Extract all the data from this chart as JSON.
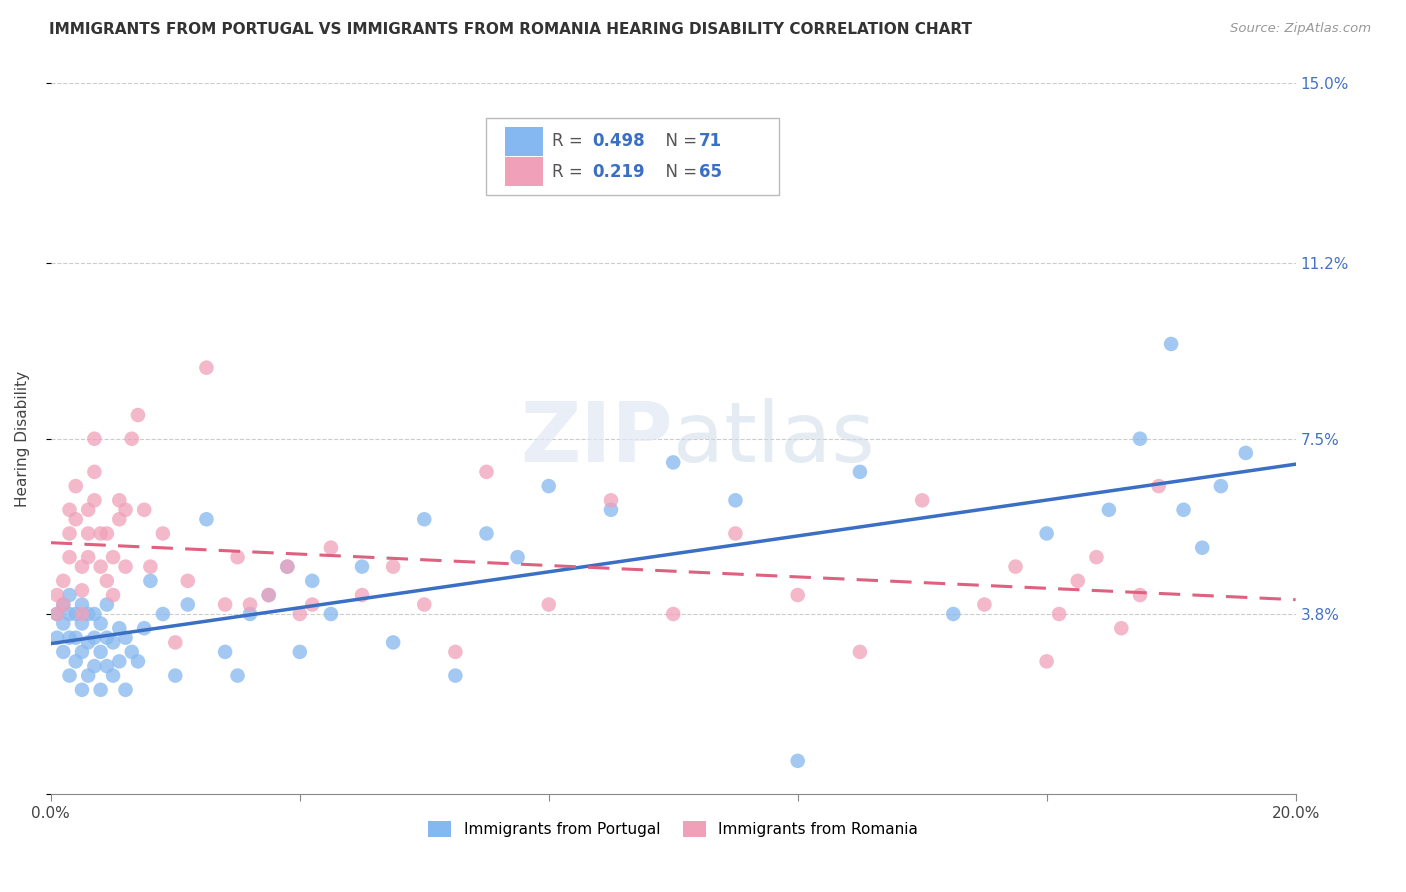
{
  "title": "IMMIGRANTS FROM PORTUGAL VS IMMIGRANTS FROM ROMANIA HEARING DISABILITY CORRELATION CHART",
  "source_text": "Source: ZipAtlas.com",
  "ylabel": "Hearing Disability",
  "xlim": [
    0.0,
    0.2
  ],
  "ylim": [
    0.0,
    0.15
  ],
  "R_portugal": 0.498,
  "N_portugal": 71,
  "R_romania": 0.219,
  "N_romania": 65,
  "color_portugal": "#85b8f0",
  "color_romania": "#f0a0b8",
  "line_color_portugal": "#3a6fc4",
  "line_color_romania": "#e06080",
  "portugal_x": [
    0.001,
    0.001,
    0.002,
    0.002,
    0.002,
    0.003,
    0.003,
    0.003,
    0.003,
    0.004,
    0.004,
    0.004,
    0.005,
    0.005,
    0.005,
    0.005,
    0.006,
    0.006,
    0.006,
    0.007,
    0.007,
    0.007,
    0.008,
    0.008,
    0.008,
    0.009,
    0.009,
    0.009,
    0.01,
    0.01,
    0.011,
    0.011,
    0.012,
    0.012,
    0.013,
    0.014,
    0.015,
    0.016,
    0.018,
    0.02,
    0.022,
    0.025,
    0.028,
    0.03,
    0.032,
    0.035,
    0.038,
    0.04,
    0.042,
    0.045,
    0.05,
    0.055,
    0.06,
    0.065,
    0.07,
    0.075,
    0.08,
    0.09,
    0.1,
    0.11,
    0.12,
    0.13,
    0.145,
    0.16,
    0.17,
    0.175,
    0.18,
    0.182,
    0.185,
    0.188,
    0.192
  ],
  "portugal_y": [
    0.033,
    0.038,
    0.03,
    0.036,
    0.04,
    0.025,
    0.033,
    0.038,
    0.042,
    0.028,
    0.033,
    0.038,
    0.022,
    0.03,
    0.036,
    0.04,
    0.025,
    0.032,
    0.038,
    0.027,
    0.033,
    0.038,
    0.022,
    0.03,
    0.036,
    0.027,
    0.033,
    0.04,
    0.025,
    0.032,
    0.028,
    0.035,
    0.022,
    0.033,
    0.03,
    0.028,
    0.035,
    0.045,
    0.038,
    0.025,
    0.04,
    0.058,
    0.03,
    0.025,
    0.038,
    0.042,
    0.048,
    0.03,
    0.045,
    0.038,
    0.048,
    0.032,
    0.058,
    0.025,
    0.055,
    0.05,
    0.065,
    0.06,
    0.07,
    0.062,
    0.007,
    0.068,
    0.038,
    0.055,
    0.06,
    0.075,
    0.095,
    0.06,
    0.052,
    0.065,
    0.072
  ],
  "romania_x": [
    0.001,
    0.001,
    0.002,
    0.002,
    0.003,
    0.003,
    0.003,
    0.004,
    0.004,
    0.005,
    0.005,
    0.005,
    0.006,
    0.006,
    0.006,
    0.007,
    0.007,
    0.007,
    0.008,
    0.008,
    0.009,
    0.009,
    0.01,
    0.01,
    0.011,
    0.011,
    0.012,
    0.012,
    0.013,
    0.014,
    0.015,
    0.016,
    0.018,
    0.02,
    0.022,
    0.025,
    0.028,
    0.03,
    0.032,
    0.035,
    0.038,
    0.04,
    0.042,
    0.045,
    0.05,
    0.055,
    0.06,
    0.065,
    0.07,
    0.08,
    0.09,
    0.1,
    0.11,
    0.12,
    0.13,
    0.14,
    0.15,
    0.155,
    0.16,
    0.162,
    0.165,
    0.168,
    0.172,
    0.175,
    0.178
  ],
  "romania_y": [
    0.038,
    0.042,
    0.04,
    0.045,
    0.06,
    0.05,
    0.055,
    0.058,
    0.065,
    0.038,
    0.043,
    0.048,
    0.05,
    0.055,
    0.06,
    0.062,
    0.068,
    0.075,
    0.048,
    0.055,
    0.045,
    0.055,
    0.042,
    0.05,
    0.058,
    0.062,
    0.048,
    0.06,
    0.075,
    0.08,
    0.06,
    0.048,
    0.055,
    0.032,
    0.045,
    0.09,
    0.04,
    0.05,
    0.04,
    0.042,
    0.048,
    0.038,
    0.04,
    0.052,
    0.042,
    0.048,
    0.04,
    0.03,
    0.068,
    0.04,
    0.062,
    0.038,
    0.055,
    0.042,
    0.03,
    0.062,
    0.04,
    0.048,
    0.028,
    0.038,
    0.045,
    0.05,
    0.035,
    0.042,
    0.065
  ]
}
